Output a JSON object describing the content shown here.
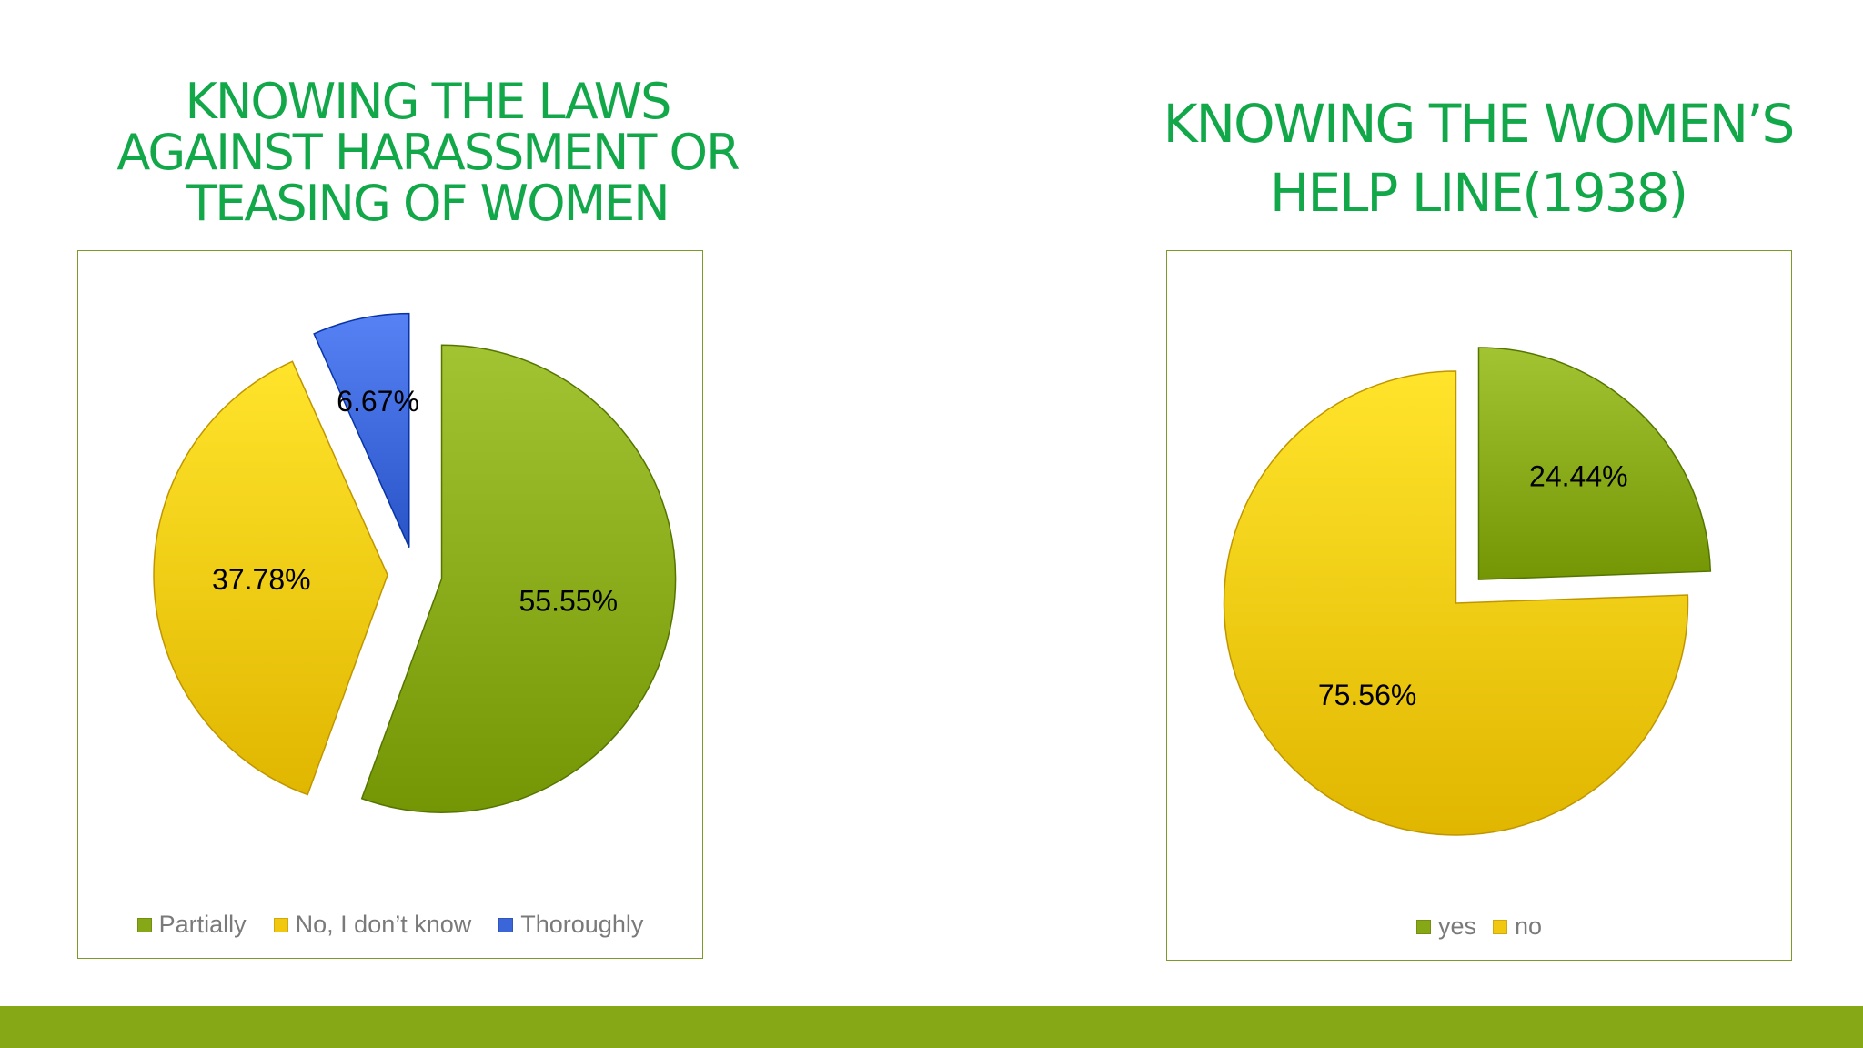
{
  "slide": {
    "accent_color": "#86a816",
    "title_color": "#12a84a"
  },
  "charts": {
    "left": {
      "title": "KNOWING THE LAWS\nAGAINST HARASSMENT OR\nTEASING OF WOMEN"
    },
    "right": {
      "title": "KNOWING THE WOMEN’S\nHELP LINE(1938)"
    }
  },
  "chart_data": [
    {
      "type": "pie",
      "title": "KNOWING THE LAWS AGAINST HARASSMENT OR TEASING OF WOMEN",
      "categories": [
        "Partially",
        "No, I don’t know",
        "Thoroughly"
      ],
      "values": [
        55.55,
        37.78,
        6.67
      ],
      "labels": [
        "55.55%",
        "37.78%",
        "6.67%"
      ],
      "colors": [
        "#86a816",
        "#f2c80f",
        "#3a66d9"
      ],
      "exploded": true,
      "legend": "bottom"
    },
    {
      "type": "pie",
      "title": "KNOWING THE WOMEN’S HELP LINE(1938)",
      "categories": [
        "yes",
        "no"
      ],
      "values": [
        24.44,
        75.56
      ],
      "labels": [
        "24.44%",
        "75.56%"
      ],
      "colors": [
        "#86a816",
        "#f2c80f"
      ],
      "exploded": true,
      "legend": "bottom"
    }
  ]
}
